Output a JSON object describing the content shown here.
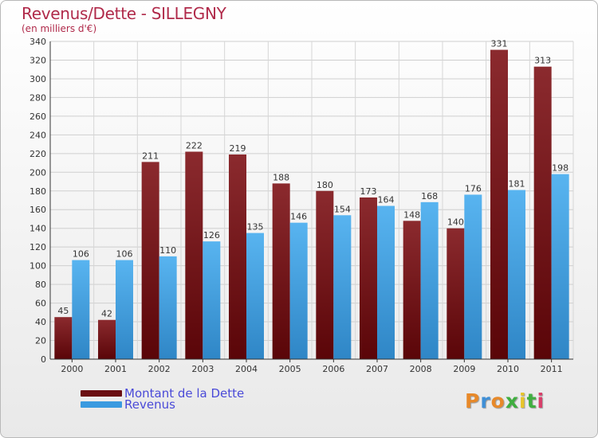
{
  "chart_data": {
    "type": "bar",
    "title": "Revenus/Dette - SILLEGNY",
    "subtitle": "(en milliers d'€)",
    "categories": [
      "2000",
      "2001",
      "2002",
      "2003",
      "2004",
      "2005",
      "2006",
      "2007",
      "2008",
      "2009",
      "2010",
      "2011"
    ],
    "series": [
      {
        "name": "Montant de la Dette",
        "color": "#7a1a1e",
        "values": [
          45,
          42,
          211,
          222,
          219,
          188,
          180,
          173,
          148,
          140,
          331,
          313
        ]
      },
      {
        "name": "Revenus",
        "color": "#4aa8ea",
        "values": [
          106,
          106,
          110,
          126,
          135,
          146,
          154,
          164,
          168,
          176,
          181,
          198
        ]
      }
    ],
    "ylim": [
      0,
      340
    ],
    "ytick_step": 20,
    "grid": true,
    "legend_position": "bottom-left"
  },
  "brand": {
    "letters": [
      "P",
      "r",
      "o",
      "x",
      "i",
      "t",
      "i"
    ],
    "colors": [
      "#e7892a",
      "#3f8fd6",
      "#e7892a",
      "#3fae3f",
      "#e7c42a",
      "#3fae3f",
      "#d83f6a"
    ]
  }
}
